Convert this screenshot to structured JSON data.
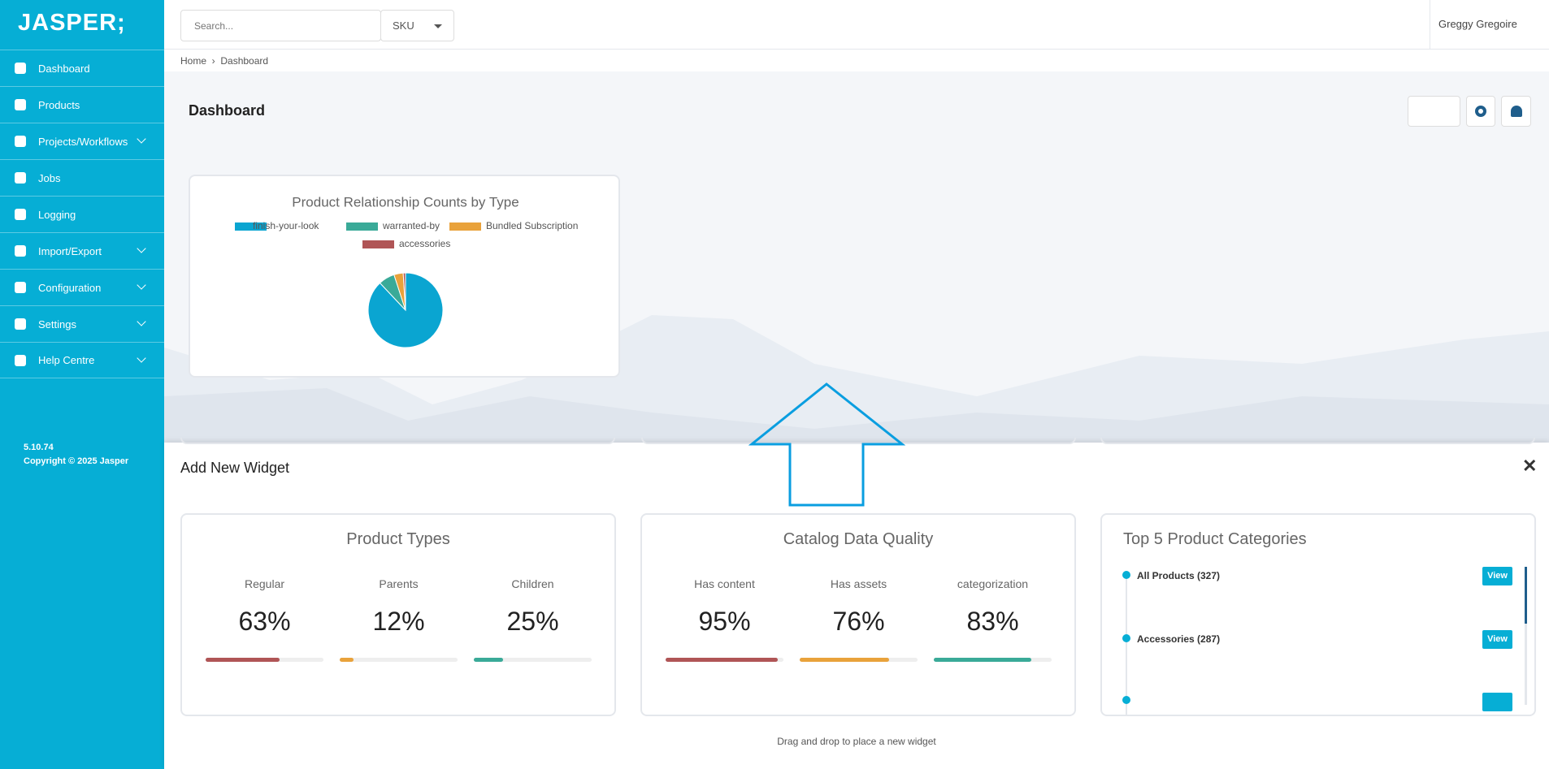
{
  "sidebar": {
    "logo": "JASPER;",
    "nav": [
      "Dashboard",
      "Products",
      "Projects/Workflows",
      "Jobs",
      "Logging",
      "Import/Export",
      "Configuration",
      "Settings",
      "Help Centre"
    ],
    "version": "5.10.74",
    "copyright": "Copyright © 2025 Jasper"
  },
  "header": {
    "search_placeholder": "Search...",
    "search_scope": "SKU",
    "user": "Greggy Gregoire"
  },
  "breadcrumb": [
    "Home",
    "Dashboard"
  ],
  "page_title": "Dashboard",
  "chart_data": {
    "type": "pie",
    "title": "Product Relationship Counts by Type",
    "categories": [
      "finish-your-look",
      "warranted-by",
      "Bundled Subscription",
      "accessories"
    ],
    "values": [
      88,
      7,
      4,
      1
    ],
    "colors": [
      "#0aa5d1",
      "#3aaa98",
      "#e9a23b",
      "#b05556"
    ]
  },
  "add_widget": {
    "title": "Add New Widget",
    "hint": "Drag and drop to place a new widget",
    "cards": [
      {
        "title": "Product Types",
        "items": [
          {
            "label": "Regular",
            "value": 63,
            "value_label": "63%",
            "color": "#b05556"
          },
          {
            "label": "Parents",
            "value": 12,
            "value_label": "12%",
            "color": "#e9a23b"
          },
          {
            "label": "Children",
            "value": 25,
            "value_label": "25%",
            "color": "#3aaa98"
          }
        ]
      },
      {
        "title": "Catalog Data Quality",
        "items": [
          {
            "label": "Has content",
            "value": 95,
            "value_label": "95%",
            "color": "#b05556"
          },
          {
            "label": "Has assets",
            "value": 76,
            "value_label": "76%",
            "color": "#e9a23b"
          },
          {
            "label": "categorization",
            "value": 83,
            "value_label": "83%",
            "color": "#3aaa98"
          }
        ]
      }
    ],
    "top_categories": {
      "title": "Top 5 Product Categories",
      "items": [
        "All Products (327)",
        "Accessories (287)"
      ],
      "button": "View"
    }
  }
}
